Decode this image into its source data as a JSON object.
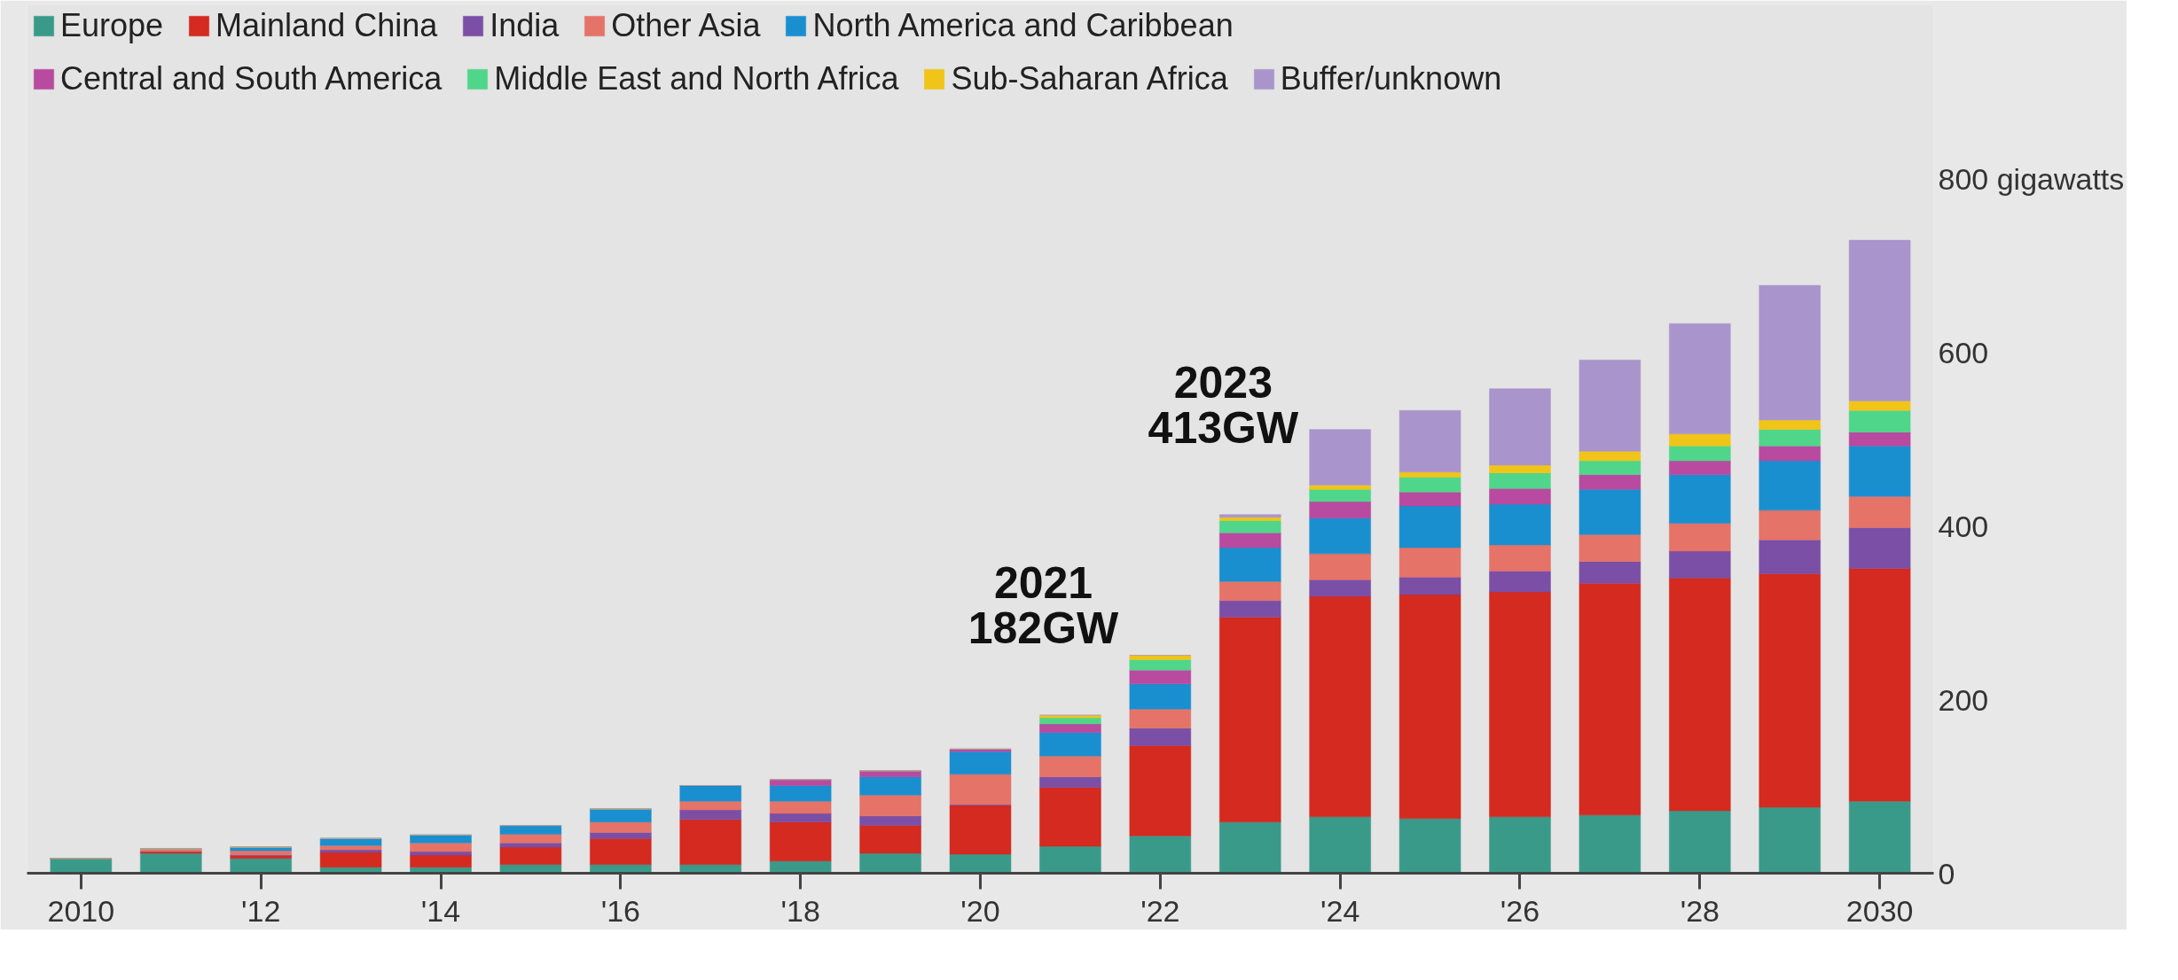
{
  "chart_data": {
    "type": "bar",
    "stacked": true,
    "x": [
      2010,
      2011,
      2012,
      2013,
      2014,
      2015,
      2016,
      2017,
      2018,
      2019,
      2020,
      2021,
      2022,
      2023,
      2024,
      2025,
      2026,
      2027,
      2028,
      2029,
      2030
    ],
    "series": [
      {
        "name": "Europe",
        "color": "#3a9a8a",
        "values": [
          17,
          23,
          17,
          7,
          7,
          10,
          10,
          10,
          14,
          23,
          22,
          31,
          43,
          59,
          65,
          63,
          65,
          67,
          72,
          76,
          83
        ]
      },
      {
        "name": "Mainland China",
        "color": "#d42a20",
        "values": [
          0,
          2,
          3,
          17,
          14,
          20,
          30,
          52,
          45,
          32,
          56,
          68,
          104,
          236,
          254,
          258,
          259,
          267,
          268,
          269,
          268
        ]
      },
      {
        "name": "India",
        "color": "#7b4fa6",
        "values": [
          0,
          0,
          1,
          3,
          4,
          5,
          7,
          11,
          10,
          11,
          1,
          12,
          20,
          19,
          19,
          20,
          24,
          25,
          31,
          39,
          47
        ]
      },
      {
        "name": "Other Asia",
        "color": "#e57368",
        "values": [
          0,
          3,
          5,
          5,
          10,
          10,
          12,
          10,
          14,
          24,
          35,
          24,
          22,
          22,
          30,
          34,
          30,
          31,
          32,
          34,
          36
        ]
      },
      {
        "name": "North America and Caribbean",
        "color": "#1a8fd0",
        "values": [
          0,
          0,
          4,
          8,
          9,
          10,
          15,
          18,
          18,
          21,
          26,
          27,
          29,
          39,
          41,
          48,
          47,
          52,
          56,
          57,
          58
        ]
      },
      {
        "name": "Central and South America",
        "color": "#b84aa0",
        "values": [
          0,
          0,
          0,
          0,
          0,
          0,
          0,
          0,
          7,
          7,
          3,
          10,
          16,
          17,
          19,
          16,
          18,
          17,
          16,
          17,
          16
        ]
      },
      {
        "name": "Middle East and North Africa",
        "color": "#4fd68a",
        "values": [
          0,
          0,
          0,
          0,
          0,
          0,
          0,
          0,
          0,
          0,
          0,
          7,
          12,
          14,
          14,
          17,
          18,
          16,
          17,
          19,
          25
        ]
      },
      {
        "name": "Sub-Saharan Africa",
        "color": "#f0c419",
        "values": [
          0,
          0,
          0,
          0,
          0,
          0,
          0,
          0,
          0,
          0,
          0,
          3,
          5,
          4,
          5,
          6,
          9,
          11,
          14,
          11,
          11
        ]
      },
      {
        "name": "Buffer/unknown",
        "color": "#a995cc",
        "values": [
          0,
          0,
          0,
          0,
          0,
          0,
          0,
          0,
          0,
          0,
          0,
          0,
          0,
          3,
          64,
          71,
          88,
          105,
          127,
          155,
          185
        ]
      }
    ],
    "xlim": [
      2009.4,
      2030.6
    ],
    "xticks": [
      2010,
      {
        "value": 2012,
        "label": "'12"
      },
      {
        "value": 2014,
        "label": "'14"
      },
      {
        "value": 2016,
        "label": "'16"
      },
      {
        "value": 2018,
        "label": "'18"
      },
      {
        "value": 2020,
        "label": "'20"
      },
      {
        "value": 2022,
        "label": "'22"
      },
      {
        "value": 2024,
        "label": "'24"
      },
      {
        "value": 2026,
        "label": "'26"
      },
      {
        "value": 2028,
        "label": "'28"
      },
      2030
    ],
    "ylim": [
      0,
      1000
    ],
    "yticks": [
      0,
      200,
      400,
      600,
      {
        "value": 800,
        "label": "800 gigawatts"
      }
    ],
    "annotations": [
      {
        "text": "2021\n182GW",
        "x": 2021,
        "y": 182
      },
      {
        "text": "2023\n413GW",
        "x": 2023,
        "y": 413
      }
    ],
    "legend": "top"
  }
}
